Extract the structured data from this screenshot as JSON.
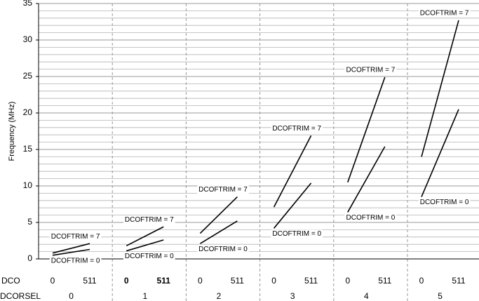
{
  "chart_data": {
    "type": "line",
    "ylabel": "Frequency (MHz)",
    "ylim": [
      0,
      35
    ],
    "yticks": [
      0,
      5,
      10,
      15,
      20,
      25,
      30,
      35
    ],
    "grid": true,
    "xlim": [
      0,
      511
    ],
    "xticks": [
      0,
      511
    ],
    "row_labels": [
      "DCO",
      "DCORSEL"
    ],
    "color": "#000000",
    "panels": [
      {
        "label": 0,
        "series": [
          {
            "name": "DCOFTRIM = 7",
            "values": [
              0.8,
              2.1
            ]
          },
          {
            "name": "DCOFTRIM = 0",
            "values": [
              0.5,
              1.3
            ]
          }
        ]
      },
      {
        "label": 1,
        "bold": true,
        "series": [
          {
            "name": "DCOFTRIM = 7",
            "values": [
              1.8,
              4.4
            ]
          },
          {
            "name": "DCOFTRIM = 0",
            "values": [
              1.1,
              2.6
            ]
          }
        ]
      },
      {
        "label": 2,
        "series": [
          {
            "name": "DCOFTRIM = 7",
            "values": [
              3.5,
              8.5
            ]
          },
          {
            "name": "DCOFTRIM = 0",
            "values": [
              2.1,
              5.2
            ]
          }
        ]
      },
      {
        "label": 3,
        "series": [
          {
            "name": "DCOFTRIM = 7",
            "values": [
              7.1,
              16.9
            ]
          },
          {
            "name": "DCOFTRIM = 0",
            "values": [
              4.2,
              10.4
            ]
          }
        ]
      },
      {
        "label": 4,
        "series": [
          {
            "name": "DCOFTRIM = 7",
            "values": [
              10.5,
              24.9
            ]
          },
          {
            "name": "DCOFTRIM = 0",
            "values": [
              6.4,
              15.4
            ]
          }
        ]
      },
      {
        "label": 5,
        "series": [
          {
            "name": "DCOFTRIM = 7",
            "values": [
              14.0,
              32.7
            ]
          },
          {
            "name": "DCOFTRIM = 0",
            "values": [
              8.5,
              20.5
            ]
          }
        ]
      }
    ]
  }
}
